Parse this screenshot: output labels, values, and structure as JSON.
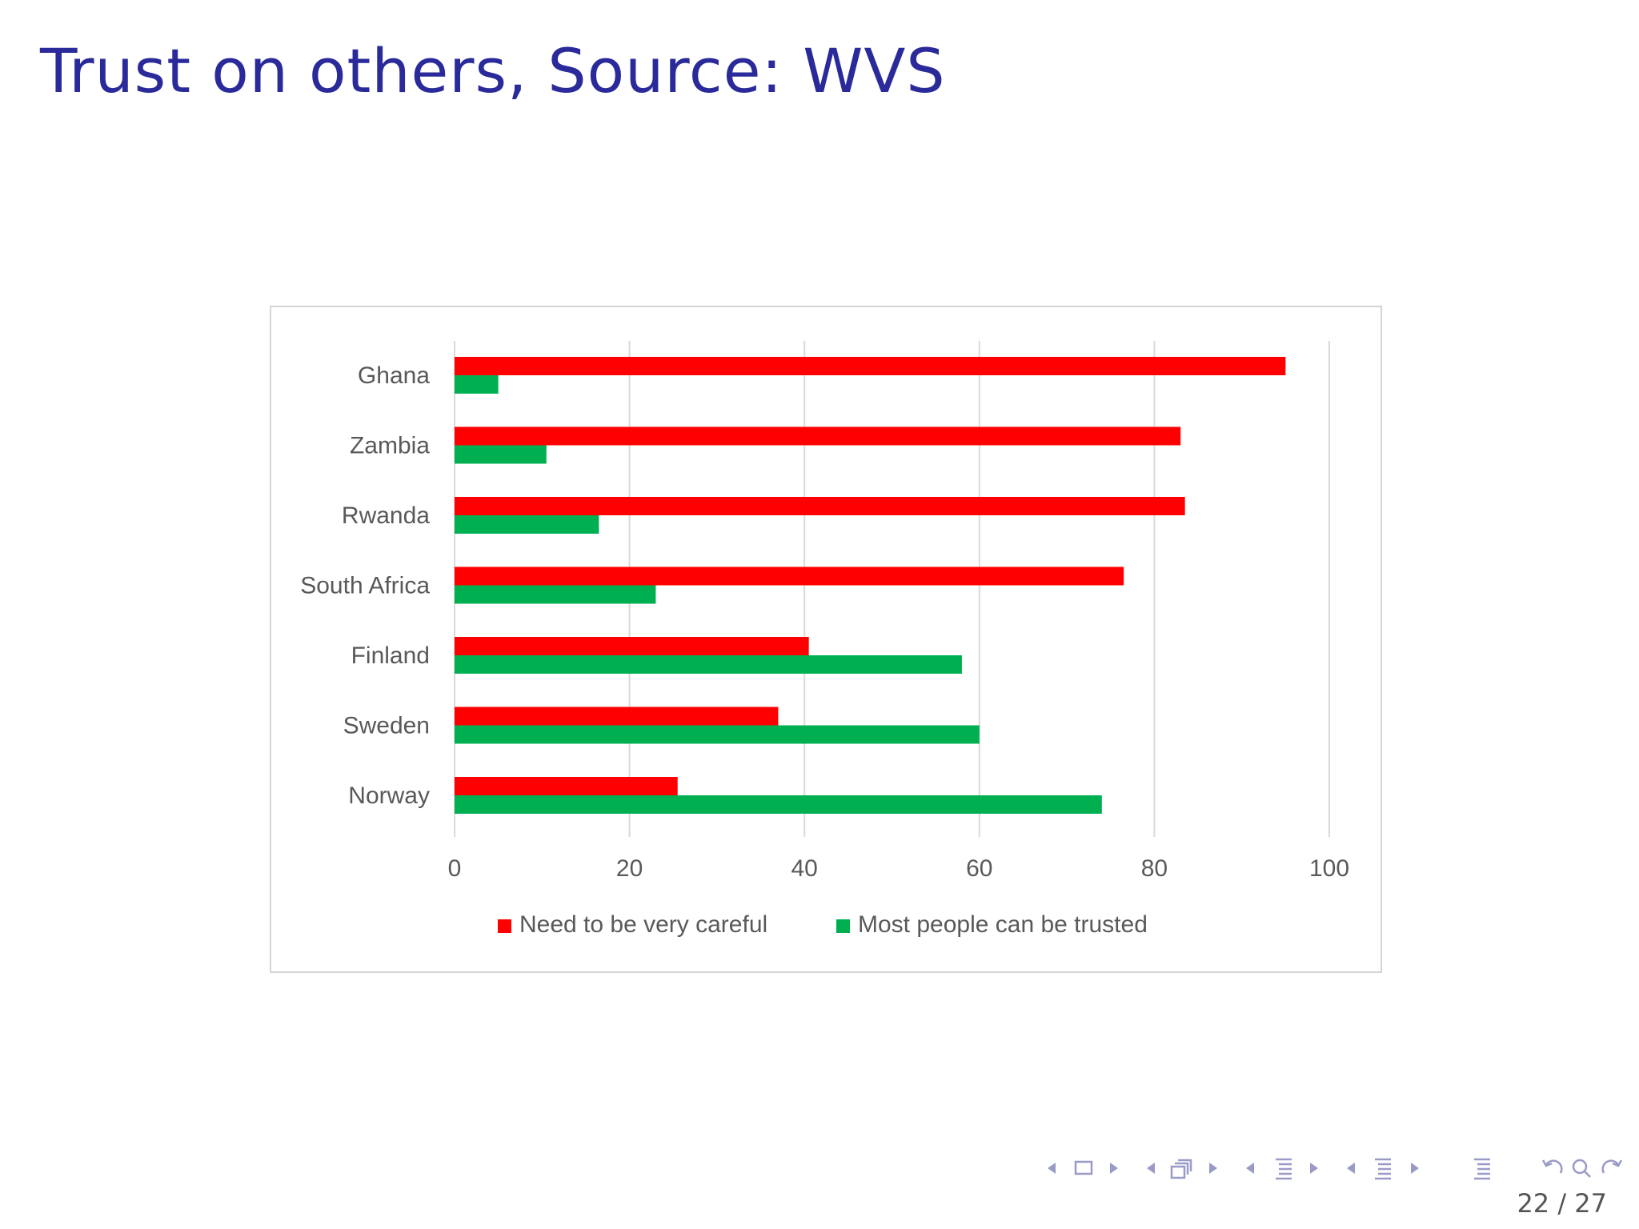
{
  "slide": {
    "title": "Trust on others, Source: WVS",
    "page_current": "22",
    "page_separator": "/",
    "page_total": "27"
  },
  "colors": {
    "title": "#2a2a9a",
    "series_careful": "#ff0000",
    "series_trusted": "#00b050",
    "gridline": "#d9d9d9",
    "axis_text": "#595959",
    "nav_icons": "#9a9ac8"
  },
  "navigation": {
    "icons": [
      "triangle-left-icon",
      "frame-icon",
      "triangle-right-icon",
      "triangle-left-icon",
      "stacked-frames-icon",
      "triangle-right-icon",
      "triangle-left-icon",
      "section-list-icon",
      "triangle-right-icon",
      "triangle-left-icon",
      "subsection-list-icon",
      "triangle-right-icon",
      "align-list-icon",
      "undo-icon",
      "search-icon",
      "redo-icon"
    ]
  },
  "chart_data": {
    "type": "bar",
    "orientation": "horizontal",
    "categories": [
      "Ghana",
      "Zambia",
      "Rwanda",
      "South Africa",
      "Finland",
      "Sweden",
      "Norway"
    ],
    "series": [
      {
        "name": "Need to be very careful",
        "values": [
          95,
          83,
          83.5,
          76.5,
          40.5,
          37,
          25.5
        ]
      },
      {
        "name": "Most people can be trusted",
        "values": [
          5,
          10.5,
          16.5,
          23,
          58,
          60,
          74
        ]
      }
    ],
    "xlim": [
      0,
      100
    ],
    "xticks": [
      "0",
      "20",
      "40",
      "60",
      "80",
      "100"
    ],
    "grid": "vertical",
    "legend_position": "bottom"
  }
}
